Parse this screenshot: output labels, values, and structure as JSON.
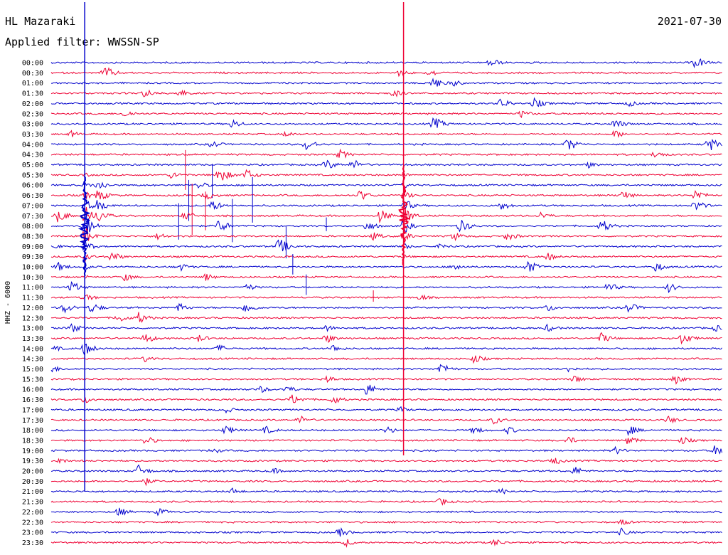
{
  "header": {
    "station": "HL Mazaraki",
    "date": "2021-07-30",
    "filter": "Applied filter: WWSSN-SP"
  },
  "chart_data": {
    "type": "line",
    "title": "",
    "ylabel": "HHZ - 6000",
    "row_labels": [
      "00:00",
      "00:30",
      "01:00",
      "01:30",
      "02:00",
      "02:30",
      "03:00",
      "03:30",
      "04:00",
      "04:30",
      "05:00",
      "05:30",
      "06:00",
      "06:30",
      "07:00",
      "07:30",
      "08:00",
      "08:30",
      "09:00",
      "09:30",
      "10:00",
      "10:30",
      "11:00",
      "11:30",
      "12:00",
      "12:30",
      "13:00",
      "13:30",
      "14:00",
      "14:30",
      "15:00",
      "15:30",
      "16:00",
      "16:30",
      "17:00",
      "17:30",
      "18:00",
      "18:30",
      "19:00",
      "19:30",
      "20:00",
      "20:30",
      "21:00",
      "21:30",
      "22:00",
      "22:30",
      "23:00",
      "23:30"
    ],
    "series_colors": [
      "#0000cc",
      "#ee0033"
    ],
    "events": [
      {
        "row": 0,
        "x": 0.655,
        "a": 7
      },
      {
        "row": 0,
        "x": 0.96,
        "a": 9
      },
      {
        "row": 1,
        "x": 0.08,
        "a": 10
      },
      {
        "row": 1,
        "x": 0.52,
        "a": 6
      },
      {
        "row": 1,
        "x": 0.565,
        "a": 6
      },
      {
        "row": 2,
        "x": 0.57,
        "a": 9
      },
      {
        "row": 2,
        "x": 0.6,
        "a": 5
      },
      {
        "row": 3,
        "x": 0.14,
        "a": 7
      },
      {
        "row": 3,
        "x": 0.19,
        "a": 6
      },
      {
        "row": 3,
        "x": 0.51,
        "a": 6
      },
      {
        "row": 4,
        "x": 0.67,
        "a": 8
      },
      {
        "row": 4,
        "x": 0.72,
        "a": 8
      },
      {
        "row": 4,
        "x": 0.86,
        "a": 5
      },
      {
        "row": 5,
        "x": 0.11,
        "a": 6
      },
      {
        "row": 5,
        "x": 0.7,
        "a": 6
      },
      {
        "row": 6,
        "x": 0.27,
        "a": 7
      },
      {
        "row": 6,
        "x": 0.57,
        "a": 10
      },
      {
        "row": 6,
        "x": 0.84,
        "a": 8
      },
      {
        "row": 7,
        "x": 0.03,
        "a": 5
      },
      {
        "row": 7,
        "x": 0.35,
        "a": 5
      },
      {
        "row": 7,
        "x": 0.84,
        "a": 6
      },
      {
        "row": 8,
        "x": 0.24,
        "a": 6
      },
      {
        "row": 8,
        "x": 0.38,
        "a": 9
      },
      {
        "row": 8,
        "x": 0.77,
        "a": 10
      },
      {
        "row": 8,
        "x": 0.98,
        "a": 11
      },
      {
        "row": 9,
        "x": 0.43,
        "a": 7
      },
      {
        "row": 9,
        "x": 0.9,
        "a": 6
      },
      {
        "row": 10,
        "x": 0.41,
        "a": 8
      },
      {
        "row": 10,
        "x": 0.45,
        "a": 8
      },
      {
        "row": 10,
        "x": 0.8,
        "a": 5
      },
      {
        "row": 11,
        "x": 0.18,
        "a": 6
      },
      {
        "row": 11,
        "x": 0.25,
        "a": 12
      },
      {
        "row": 11,
        "x": 0.29,
        "a": 9
      },
      {
        "row": 12,
        "x": 0.07,
        "a": 8
      },
      {
        "row": 12,
        "x": 0.22,
        "a": 6
      },
      {
        "row": 13,
        "x": 0.07,
        "a": 9
      },
      {
        "row": 13,
        "x": 0.23,
        "a": 7
      },
      {
        "row": 13,
        "x": 0.46,
        "a": 8
      },
      {
        "row": 13,
        "x": 0.85,
        "a": 8
      },
      {
        "row": 13,
        "x": 0.96,
        "a": 9
      },
      {
        "row": 14,
        "x": 0.07,
        "a": 10
      },
      {
        "row": 14,
        "x": 0.24,
        "a": 8
      },
      {
        "row": 14,
        "x": 0.67,
        "a": 7
      },
      {
        "row": 14,
        "x": 0.96,
        "a": 8
      },
      {
        "row": 15,
        "x": 0.01,
        "a": 10
      },
      {
        "row": 15,
        "x": 0.07,
        "a": 10
      },
      {
        "row": 15,
        "x": 0.2,
        "a": 7
      },
      {
        "row": 15,
        "x": 0.49,
        "a": 10
      },
      {
        "row": 15,
        "x": 0.73,
        "a": 6
      },
      {
        "row": 16,
        "x": 0.05,
        "a": 9
      },
      {
        "row": 16,
        "x": 0.25,
        "a": 10
      },
      {
        "row": 16,
        "x": 0.47,
        "a": 8
      },
      {
        "row": 16,
        "x": 0.61,
        "a": 10
      },
      {
        "row": 16,
        "x": 0.82,
        "a": 10
      },
      {
        "row": 17,
        "x": 0.16,
        "a": 6
      },
      {
        "row": 17,
        "x": 0.48,
        "a": 6
      },
      {
        "row": 17,
        "x": 0.6,
        "a": 7
      },
      {
        "row": 17,
        "x": 0.68,
        "a": 7
      },
      {
        "row": 18,
        "x": 0.0,
        "a": 5
      },
      {
        "row": 18,
        "x": 0.34,
        "a": 12
      },
      {
        "row": 18,
        "x": 0.58,
        "a": 5
      },
      {
        "row": 19,
        "x": 0.09,
        "a": 8
      },
      {
        "row": 19,
        "x": 0.74,
        "a": 6
      },
      {
        "row": 20,
        "x": 0.01,
        "a": 7
      },
      {
        "row": 20,
        "x": 0.19,
        "a": 7
      },
      {
        "row": 20,
        "x": 0.6,
        "a": 7
      },
      {
        "row": 20,
        "x": 0.71,
        "a": 10
      },
      {
        "row": 20,
        "x": 0.9,
        "a": 8
      },
      {
        "row": 21,
        "x": 0.11,
        "a": 6
      },
      {
        "row": 21,
        "x": 0.23,
        "a": 6
      },
      {
        "row": 22,
        "x": 0.03,
        "a": 9
      },
      {
        "row": 22,
        "x": 0.29,
        "a": 6
      },
      {
        "row": 22,
        "x": 0.83,
        "a": 7
      },
      {
        "row": 22,
        "x": 0.92,
        "a": 7
      },
      {
        "row": 23,
        "x": 0.05,
        "a": 6
      },
      {
        "row": 23,
        "x": 0.55,
        "a": 5
      },
      {
        "row": 24,
        "x": 0.02,
        "a": 8
      },
      {
        "row": 24,
        "x": 0.06,
        "a": 8
      },
      {
        "row": 24,
        "x": 0.19,
        "a": 7
      },
      {
        "row": 24,
        "x": 0.29,
        "a": 8
      },
      {
        "row": 24,
        "x": 0.74,
        "a": 6
      },
      {
        "row": 24,
        "x": 0.86,
        "a": 8
      },
      {
        "row": 25,
        "x": 0.1,
        "a": 7
      },
      {
        "row": 25,
        "x": 0.13,
        "a": 9
      },
      {
        "row": 26,
        "x": 0.03,
        "a": 7
      },
      {
        "row": 26,
        "x": 0.41,
        "a": 5
      },
      {
        "row": 26,
        "x": 0.74,
        "a": 6
      },
      {
        "row": 26,
        "x": 0.99,
        "a": 5
      },
      {
        "row": 27,
        "x": 0.14,
        "a": 8
      },
      {
        "row": 27,
        "x": 0.22,
        "a": 6
      },
      {
        "row": 27,
        "x": 0.41,
        "a": 7
      },
      {
        "row": 27,
        "x": 0.82,
        "a": 8
      },
      {
        "row": 27,
        "x": 0.94,
        "a": 9
      },
      {
        "row": 28,
        "x": 0.0,
        "a": 6
      },
      {
        "row": 28,
        "x": 0.05,
        "a": 10
      },
      {
        "row": 28,
        "x": 0.25,
        "a": 6
      },
      {
        "row": 28,
        "x": 0.42,
        "a": 6
      },
      {
        "row": 29,
        "x": 0.14,
        "a": 5
      },
      {
        "row": 29,
        "x": 0.63,
        "a": 7
      },
      {
        "row": 30,
        "x": 0.0,
        "a": 6
      },
      {
        "row": 30,
        "x": 0.58,
        "a": 9
      },
      {
        "row": 30,
        "x": 0.77,
        "a": 5
      },
      {
        "row": 31,
        "x": 0.41,
        "a": 6
      },
      {
        "row": 31,
        "x": 0.78,
        "a": 6
      },
      {
        "row": 31,
        "x": 0.93,
        "a": 7
      },
      {
        "row": 32,
        "x": 0.31,
        "a": 6
      },
      {
        "row": 32,
        "x": 0.35,
        "a": 6
      },
      {
        "row": 32,
        "x": 0.47,
        "a": 10
      },
      {
        "row": 33,
        "x": 0.05,
        "a": 6
      },
      {
        "row": 33,
        "x": 0.36,
        "a": 8
      },
      {
        "row": 33,
        "x": 0.42,
        "a": 7
      },
      {
        "row": 34,
        "x": 0.26,
        "a": 5
      },
      {
        "row": 34,
        "x": 0.52,
        "a": 5
      },
      {
        "row": 35,
        "x": 0.37,
        "a": 7
      },
      {
        "row": 35,
        "x": 0.66,
        "a": 6
      },
      {
        "row": 35,
        "x": 0.92,
        "a": 6
      },
      {
        "row": 36,
        "x": 0.26,
        "a": 7
      },
      {
        "row": 36,
        "x": 0.32,
        "a": 6
      },
      {
        "row": 36,
        "x": 0.5,
        "a": 6
      },
      {
        "row": 36,
        "x": 0.63,
        "a": 6
      },
      {
        "row": 36,
        "x": 0.68,
        "a": 6
      },
      {
        "row": 36,
        "x": 0.86,
        "a": 8
      },
      {
        "row": 37,
        "x": 0.14,
        "a": 7
      },
      {
        "row": 37,
        "x": 0.77,
        "a": 6
      },
      {
        "row": 37,
        "x": 0.86,
        "a": 7
      },
      {
        "row": 37,
        "x": 0.94,
        "a": 6
      },
      {
        "row": 38,
        "x": 0.24,
        "a": 5
      },
      {
        "row": 38,
        "x": 0.84,
        "a": 6
      },
      {
        "row": 38,
        "x": 0.99,
        "a": 9
      },
      {
        "row": 39,
        "x": 0.01,
        "a": 5
      },
      {
        "row": 39,
        "x": 0.75,
        "a": 6
      },
      {
        "row": 40,
        "x": 0.13,
        "a": 9
      },
      {
        "row": 40,
        "x": 0.33,
        "a": 5
      },
      {
        "row": 40,
        "x": 0.78,
        "a": 7
      },
      {
        "row": 41,
        "x": 0.14,
        "a": 6
      },
      {
        "row": 42,
        "x": 0.27,
        "a": 5
      },
      {
        "row": 42,
        "x": 0.67,
        "a": 5
      },
      {
        "row": 43,
        "x": 0.58,
        "a": 6
      },
      {
        "row": 44,
        "x": 0.1,
        "a": 7
      },
      {
        "row": 44,
        "x": 0.16,
        "a": 6
      },
      {
        "row": 45,
        "x": 0.85,
        "a": 5
      },
      {
        "row": 46,
        "x": 0.43,
        "a": 7
      },
      {
        "row": 46,
        "x": 0.85,
        "a": 6
      },
      {
        "row": 47,
        "x": 0.44,
        "a": 6
      },
      {
        "row": 47,
        "x": 0.66,
        "a": 6
      }
    ],
    "spikes": [
      {
        "row": 11,
        "x": 0.2,
        "a": 35
      },
      {
        "row": 12,
        "x": 0.24,
        "a": 30
      },
      {
        "row": 14,
        "x": 0.3,
        "a": 40
      },
      {
        "row": 15,
        "x": 0.21,
        "a": 45
      },
      {
        "row": 16,
        "x": 0.19,
        "a": 32
      },
      {
        "row": 16,
        "x": 0.27,
        "a": 38
      },
      {
        "row": 15,
        "x": 0.23,
        "a": 34
      },
      {
        "row": 14,
        "x": 0.205,
        "a": 36
      },
      {
        "row": 18,
        "x": 0.35,
        "a": 28
      },
      {
        "row": 16,
        "x": 0.41,
        "a": 12
      },
      {
        "row": 22,
        "x": 0.38,
        "a": 18
      },
      {
        "row": 20,
        "x": 0.36,
        "a": 18
      },
      {
        "row": 23,
        "x": 0.48,
        "a": 10
      }
    ],
    "quakes": [
      {
        "x": 0.05,
        "top": -85,
        "bottom": 690,
        "row_peak": 16,
        "strength": 1.0
      },
      {
        "x": 0.525,
        "top": -85,
        "bottom": 640,
        "row_peak": 15,
        "strength": 0.8
      }
    ]
  }
}
